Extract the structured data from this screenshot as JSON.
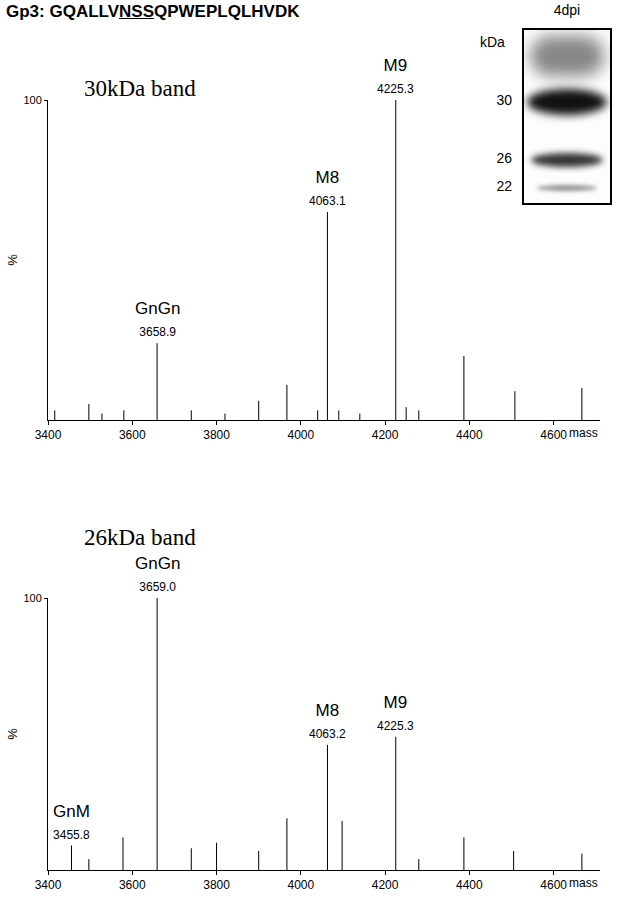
{
  "header": {
    "title": "Gp3: GQALLVNSSQPWEPLQLHVDK",
    "underline": "NSS"
  },
  "inset": {
    "title": "4dpi",
    "unit": "kDa",
    "markers": [
      30,
      26,
      22
    ]
  },
  "chart_data": [
    {
      "type": "stem",
      "title": "30kDa band",
      "xlabel": "mass",
      "ylabel": "%",
      "xlim": [
        3400,
        4710
      ],
      "xticks": [
        3400,
        3600,
        3800,
        4000,
        4200,
        4400,
        4600
      ],
      "ylim": [
        0,
        100
      ],
      "yticks": [
        100
      ],
      "color": "#000000",
      "x": [
        3416,
        3497,
        3528,
        3580,
        3658.9,
        3740,
        3820,
        3900,
        3967,
        4040,
        4063.1,
        4090,
        4140,
        4225.3,
        4250,
        4280,
        4387,
        4508,
        4667
      ],
      "values": [
        3,
        5,
        2,
        3,
        24,
        3,
        2,
        6,
        11,
        3,
        65,
        3,
        2,
        100,
        4,
        3,
        20,
        9,
        10
      ],
      "annotations": [
        {
          "x": 3658.9,
          "text": "GnGn",
          "x_label": "3658.9"
        },
        {
          "x": 4063.1,
          "text": "M8",
          "x_label": "4063.1"
        },
        {
          "x": 4225.3,
          "text": "M9",
          "x_label": "4225.3"
        }
      ]
    },
    {
      "type": "stem",
      "title": "26kDa band",
      "xlabel": "mass",
      "ylabel": "%",
      "xlim": [
        3400,
        4710
      ],
      "xticks": [
        3400,
        3600,
        3800,
        4000,
        4200,
        4400,
        4600
      ],
      "ylim": [
        0,
        100
      ],
      "yticks": [
        100
      ],
      "color": "#000000",
      "x": [
        3455.8,
        3497,
        3578,
        3659.0,
        3740,
        3800,
        3900,
        3967,
        4063.2,
        4098,
        4225.3,
        4280,
        4387,
        4505,
        4667
      ],
      "values": [
        9,
        4,
        12,
        100,
        8,
        10,
        7,
        19,
        46,
        18,
        49,
        4,
        12,
        7,
        6
      ],
      "annotations": [
        {
          "x": 3455.8,
          "text": "GnM",
          "x_label": "3455.8"
        },
        {
          "x": 3659.0,
          "text": "GnGn",
          "x_label": "3659.0"
        },
        {
          "x": 4063.2,
          "text": "M8",
          "x_label": "4063.2"
        },
        {
          "x": 4225.3,
          "text": "M9",
          "x_label": "4225.3"
        }
      ]
    }
  ]
}
